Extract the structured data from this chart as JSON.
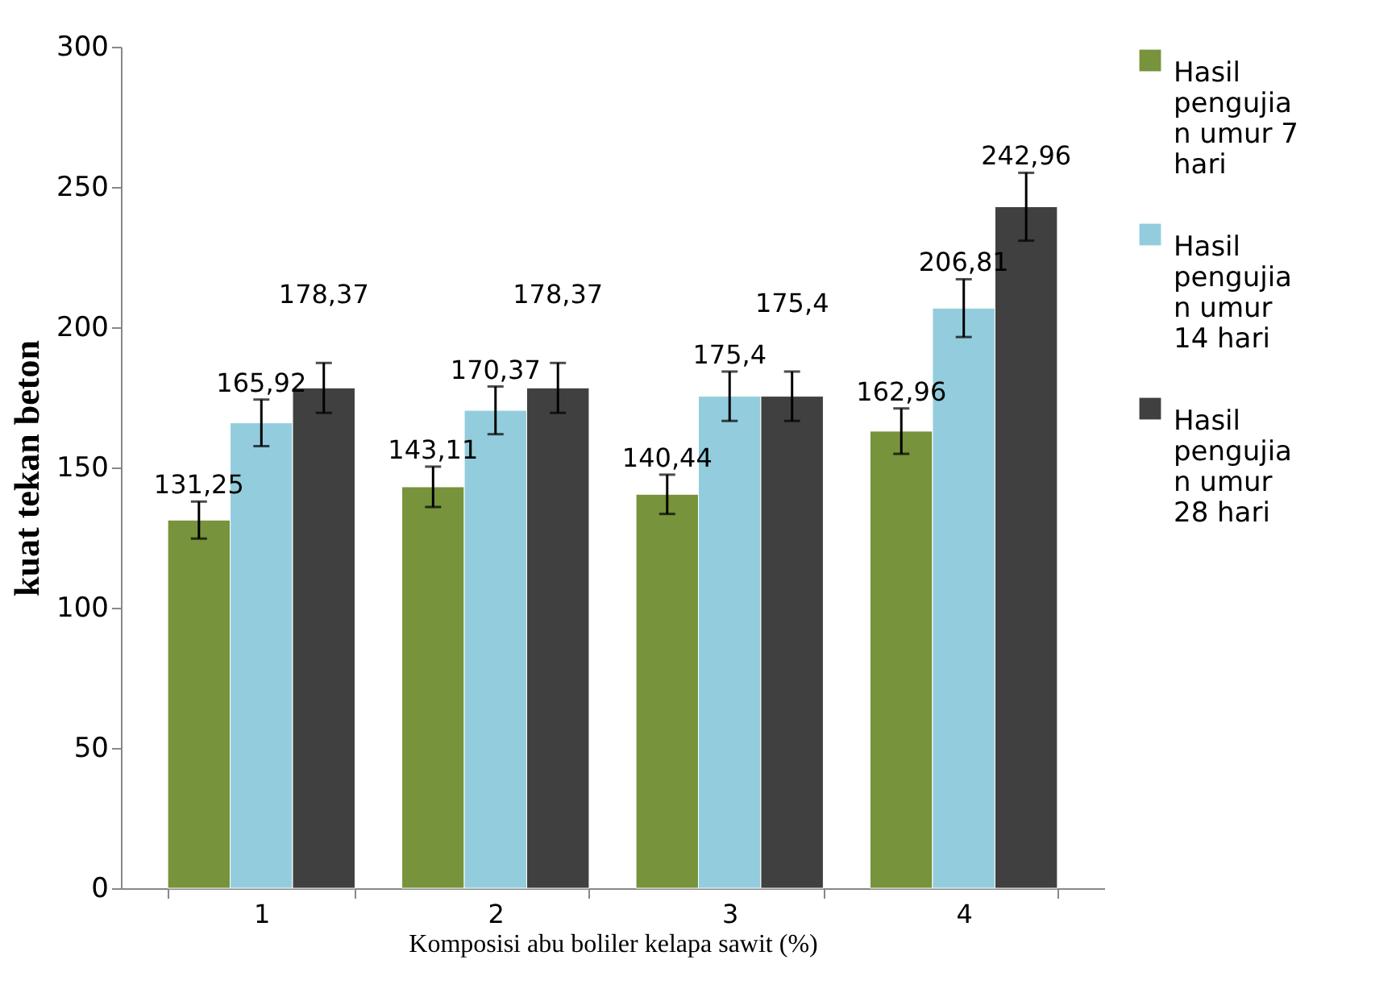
{
  "chart_data": {
    "type": "bar",
    "xlabel": "Komposisi abu boliler kelapa sawit (%)",
    "ylabel": "kuat tekan beton",
    "categories": [
      "1",
      "2",
      "3",
      "4"
    ],
    "series": [
      {
        "name": "Hasil pengujian umur 7 hari",
        "color": "#77933c",
        "values": [
          131.25,
          143.11,
          140.44,
          162.96
        ],
        "errors": [
          6.6,
          7.2,
          7,
          8.1
        ],
        "value_labels": [
          "131,25",
          "143,11",
          "140,44",
          "162,96"
        ]
      },
      {
        "name": "Hasil pengujian umur 14 hari",
        "color": "#93cddd",
        "values": [
          165.92,
          170.37,
          175.4,
          206.81
        ],
        "errors": [
          8.3,
          8.5,
          8.8,
          10.3
        ],
        "value_labels": [
          "165,92",
          "170,37",
          "175,4",
          "206,81"
        ]
      },
      {
        "name": "Hasil pengujian umur 28  hari",
        "color": "#404040",
        "values": [
          178.37,
          178.37,
          175.4,
          242.96
        ],
        "errors": [
          8.9,
          8.9,
          8.8,
          12.1
        ],
        "value_labels": [
          "178,37",
          "178,37",
          "175,4",
          "242,96"
        ]
      }
    ],
    "ylim": [
      0,
      300
    ],
    "yticks": [
      0,
      50,
      100,
      150,
      200,
      250,
      300
    ],
    "grid": false,
    "legend": "right"
  }
}
